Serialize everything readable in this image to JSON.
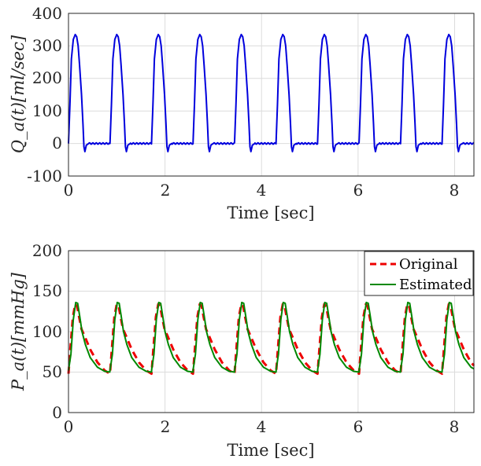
{
  "chart_data": [
    {
      "type": "line",
      "ylabel": "Q_a(t)[ml/sec]",
      "xlabel": "Time [sec]",
      "xlim": [
        0,
        8.4
      ],
      "ylim": [
        -100,
        400
      ],
      "xticks": [
        "0",
        "2",
        "4",
        "6",
        "8"
      ],
      "yticks": [
        "-100",
        "0",
        "100",
        "200",
        "300",
        "400"
      ],
      "grid": true,
      "beat_period_sec": 0.86,
      "beat_onsets_sec": [
        0.0,
        0.86,
        1.72,
        2.58,
        3.44,
        4.3,
        5.16,
        6.02,
        6.88,
        7.74
      ],
      "series": [
        {
          "name": "Q_a",
          "color": "#0000dd",
          "waveform": {
            "t": [
              0.0,
              0.03,
              0.06,
              0.1,
              0.14,
              0.17,
              0.2,
              0.23,
              0.27,
              0.3,
              0.32,
              0.34,
              0.37,
              0.42,
              0.86
            ],
            "v": [
              0,
              120,
              260,
              320,
              335,
              328,
              300,
              240,
              150,
              60,
              -10,
              -25,
              -5,
              0,
              0
            ]
          }
        }
      ]
    },
    {
      "type": "line",
      "ylabel": "P_a(t)[mmHg]",
      "xlabel": "Time [sec]",
      "xlim": [
        0,
        8.4
      ],
      "ylim": [
        0,
        200
      ],
      "xticks": [
        "0",
        "2",
        "4",
        "6",
        "8"
      ],
      "yticks": [
        "0",
        "50",
        "100",
        "150",
        "200"
      ],
      "grid": true,
      "legend_position": "top-right",
      "beat_period_sec": 0.86,
      "series": [
        {
          "name": "Original",
          "color": "#ee0000",
          "style": "dashed",
          "waveform": {
            "t": [
              0.0,
              0.04,
              0.09,
              0.14,
              0.18,
              0.22,
              0.27,
              0.33,
              0.45,
              0.6,
              0.75,
              0.86
            ],
            "v": [
              48,
              80,
              118,
              134,
              131,
              118,
              103,
              95,
              78,
              62,
              52,
              48
            ]
          }
        },
        {
          "name": "Estimated",
          "color": "#008800",
          "style": "solid",
          "waveform": {
            "t": [
              0.0,
              0.05,
              0.1,
              0.15,
              0.19,
              0.23,
              0.28,
              0.35,
              0.45,
              0.6,
              0.75,
              0.86
            ],
            "v": [
              52,
              72,
              115,
              136,
              135,
              120,
              100,
              84,
              68,
              56,
              51,
              50
            ]
          }
        }
      ]
    }
  ]
}
